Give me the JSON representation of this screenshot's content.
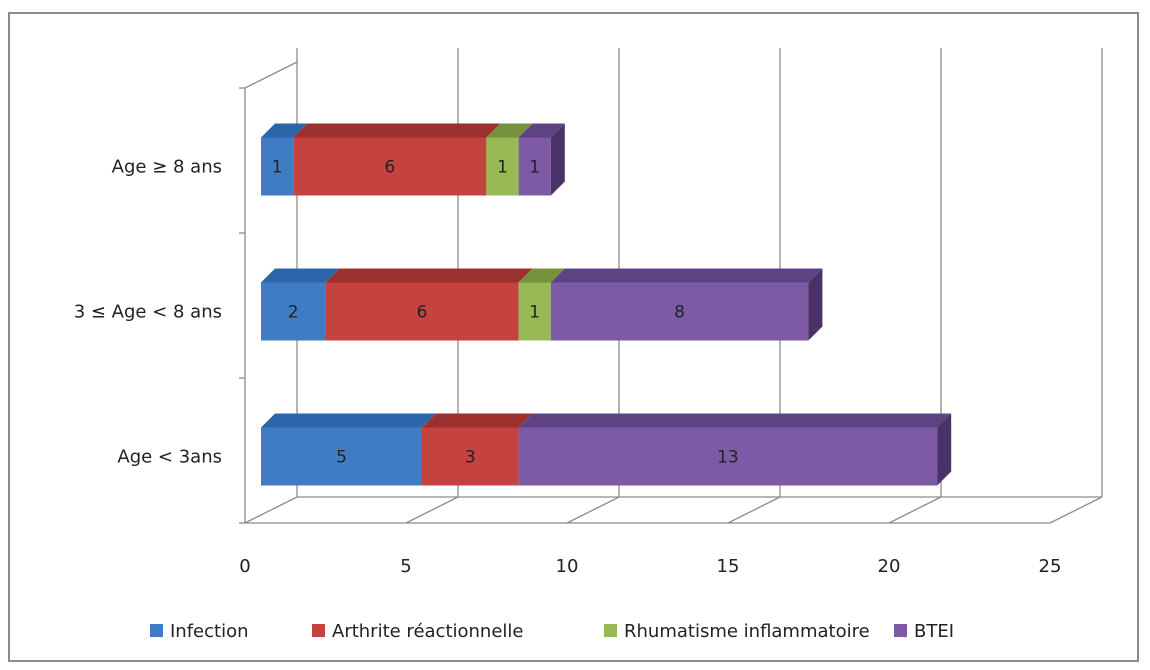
{
  "chart_data": {
    "type": "bar",
    "orientation": "horizontal",
    "stacked": true,
    "style": "3d",
    "categories": [
      "Age < 3ans",
      "3 ≤ Age < 8 ans",
      "Age ≥ 8 ans"
    ],
    "series": [
      {
        "name": "Infection",
        "values": [
          5,
          2,
          1
        ],
        "color": "#3f7cc3",
        "top_color": "#2c66a8",
        "side_color": "#2a5588"
      },
      {
        "name": "Arthrite réactionnelle",
        "values": [
          3,
          6,
          6
        ],
        "color": "#c44240",
        "top_color": "#9c302f",
        "side_color": "#8a2a29"
      },
      {
        "name": "Rhumatisme inflammatoire",
        "values": [
          0,
          1,
          1
        ],
        "color": "#98b954",
        "top_color": "#77923c",
        "side_color": "#5f7a2d"
      },
      {
        "name": "BTEI",
        "values": [
          13,
          8,
          1
        ],
        "color": "#7d5aa6",
        "top_color": "#5e4383",
        "side_color": "#4a3268"
      }
    ],
    "xlim": [
      0,
      25
    ],
    "x_ticks": [
      "0",
      "5",
      "10",
      "15",
      "20",
      "25"
    ],
    "grid": true,
    "legend": "bottom"
  }
}
